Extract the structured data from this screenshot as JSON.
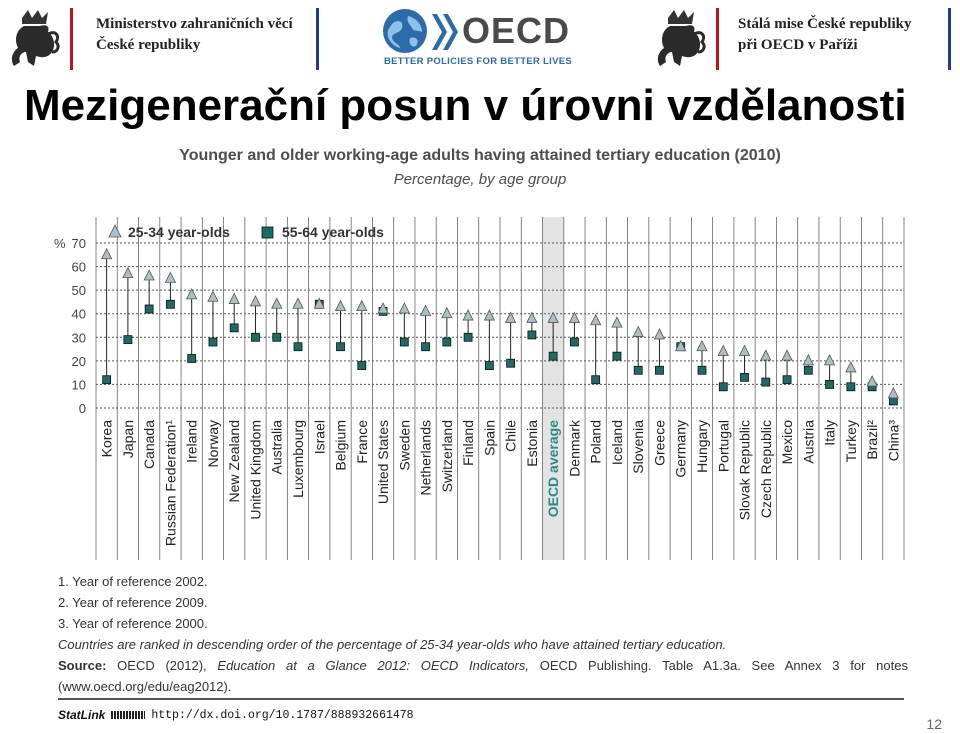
{
  "header": {
    "ministry_text": "Ministerstvo zahraničních věcí\nČeské republiky",
    "oecd_word": "OECD",
    "oecd_tagline": "BETTER POLICIES FOR BETTER LIVES",
    "mission_text": "Stálá mise České republiky\npři OECD v Paříži",
    "colors": {
      "red": "#c0141c",
      "blue": "#1f3c88",
      "oecd_blue": "#2c6aa8"
    }
  },
  "slide_title": "Mezigenerační posun v úrovni vzdělanosti",
  "page_number": "12",
  "chart_data": {
    "type": "scatter",
    "title": "Younger and older working-age adults having attained tertiary education (2010)",
    "subtitle": "Percentage, by age group",
    "y_unit": "%",
    "ylim": [
      0,
      70
    ],
    "yticks": [
      0,
      10,
      20,
      30,
      40,
      50,
      60,
      70
    ],
    "grid": true,
    "legend_position": "top-left",
    "categories": [
      "Korea",
      "Japan",
      "Canada",
      "Russian Federation¹",
      "Ireland",
      "Norway",
      "New Zealand",
      "United Kingdom",
      "Australia",
      "Luxembourg",
      "Israel",
      "Belgium",
      "France",
      "United States",
      "Sweden",
      "Netherlands",
      "Switzerland",
      "Finland",
      "Spain",
      "Chile",
      "Estonia",
      "OECD average",
      "Denmark",
      "Poland",
      "Iceland",
      "Slovenia",
      "Greece",
      "Germany",
      "Hungary",
      "Portugal",
      "Slovak Republic",
      "Czech Republic",
      "Mexico",
      "Austria",
      "Italy",
      "Turkey",
      "Brazil²",
      "China³"
    ],
    "highlight_category": "OECD average",
    "series": [
      {
        "name": "25-34 year-olds",
        "marker": "triangle",
        "color": "#a9c0c6",
        "values": [
          65,
          57,
          56,
          55,
          48,
          47,
          46,
          45,
          44,
          44,
          44,
          43,
          43,
          42,
          42,
          41,
          40,
          39,
          39,
          38,
          38,
          38,
          38,
          37,
          36,
          32,
          31,
          26,
          26,
          24,
          24,
          22,
          22,
          20,
          20,
          17,
          11,
          6
        ]
      },
      {
        "name": "55-64 year-olds",
        "marker": "square",
        "color": "#1e6b66",
        "values": [
          12,
          29,
          42,
          44,
          21,
          28,
          34,
          30,
          30,
          26,
          44,
          26,
          18,
          41,
          28,
          26,
          28,
          30,
          18,
          19,
          31,
          22,
          28,
          12,
          22,
          16,
          16,
          26,
          16,
          9,
          13,
          11,
          12,
          16,
          10,
          9,
          9,
          3
        ]
      }
    ]
  },
  "notes": {
    "items": [
      "1. Year of reference 2002.",
      "2. Year of reference 2009.",
      "3. Year of reference 2000."
    ],
    "ranking_note": "Countries are ranked in descending order of the percentage of 25-34 year-olds who have attained tertiary education.",
    "source_label": "Source:",
    "source_org": "OECD (2012),",
    "source_pub": "Education at a Glance 2012: OECD Indicators,",
    "source_rest": "OECD Publishing. Table A1.3a. See Annex 3 for notes (www.oecd.org/edu/eag2012).",
    "statlink_label": "StatLink",
    "statlink_url": "http://dx.doi.org/10.1787/888932661478"
  }
}
